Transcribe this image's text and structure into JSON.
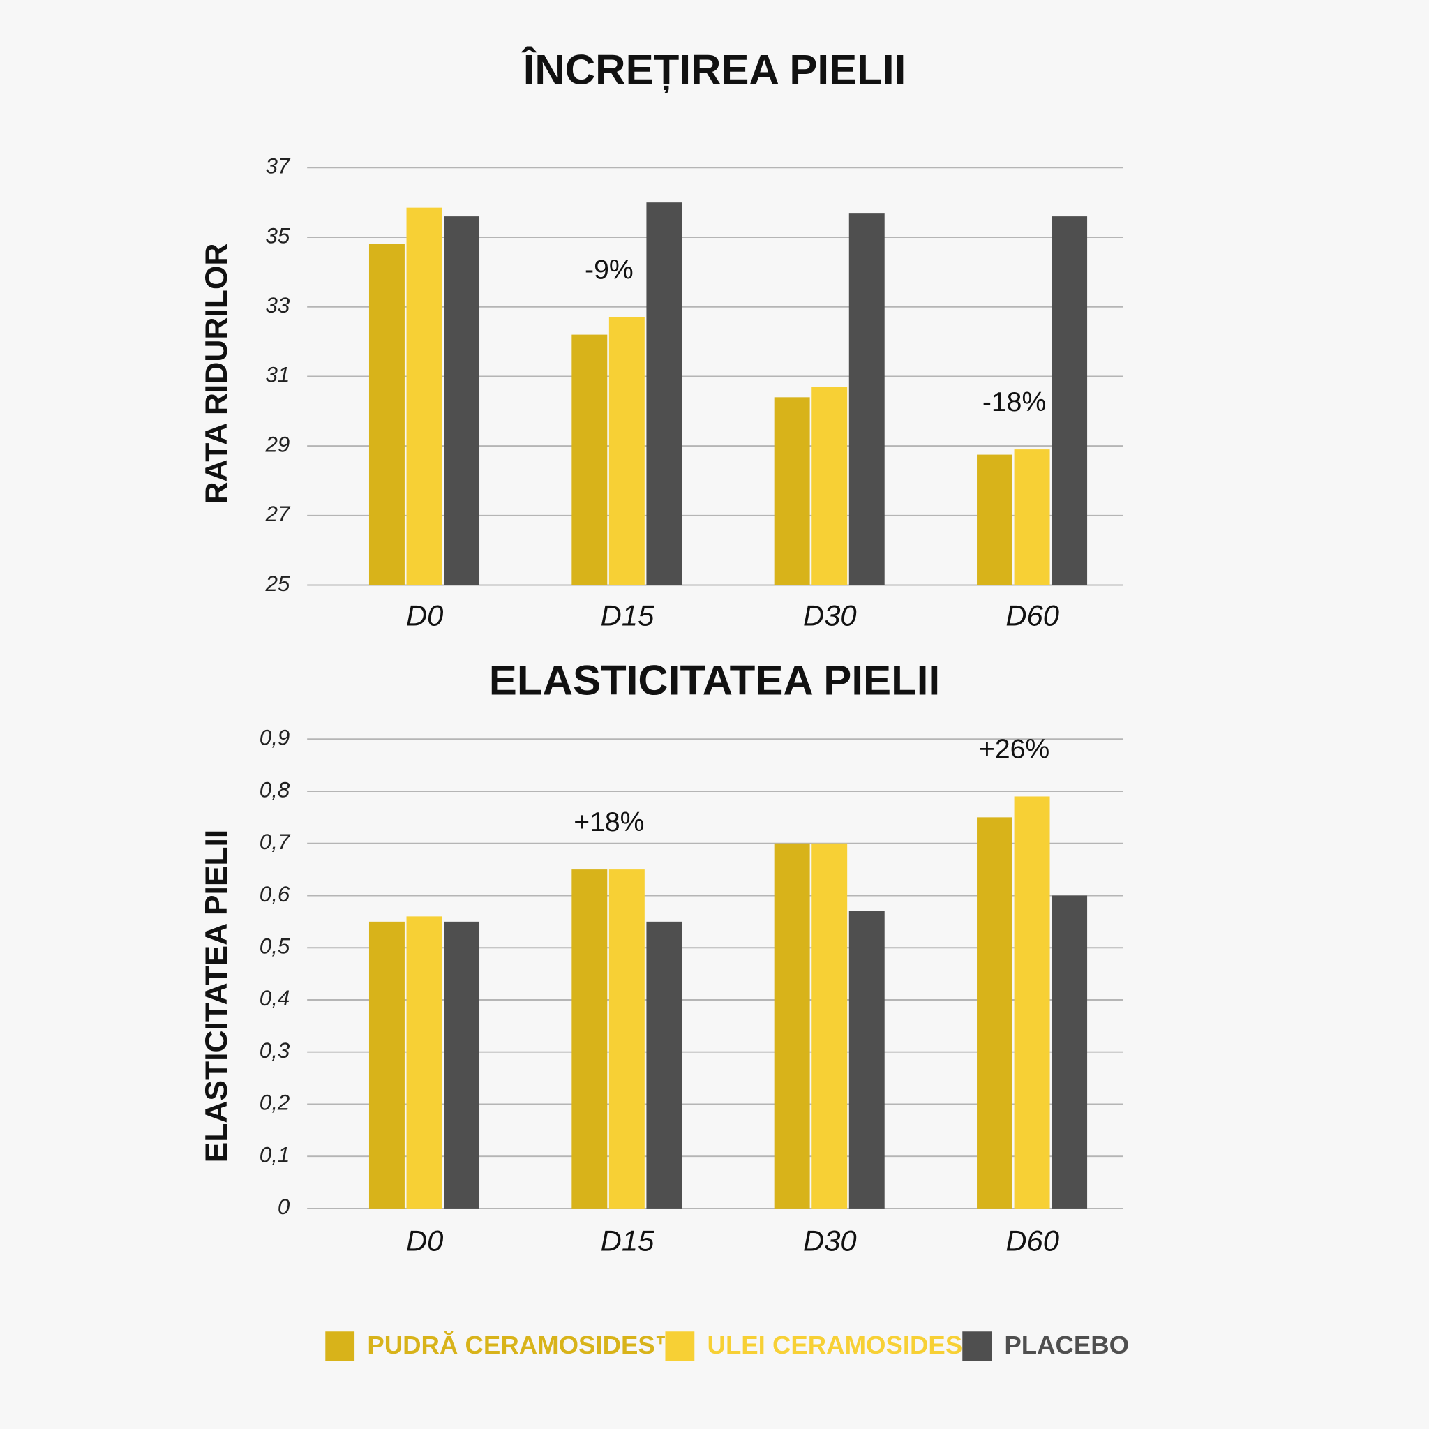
{
  "chart_data": [
    {
      "type": "bar",
      "title": "ÎNCREȚIREA PIELII",
      "y_label": "RATA RIDURILOR",
      "categories": [
        "D0",
        "D15",
        "D30",
        "D60"
      ],
      "series": [
        {
          "name": "PUDRĂ CERAMOSIDES™",
          "color": "#d8b31a",
          "values": [
            34.8,
            32.2,
            30.4,
            28.75
          ]
        },
        {
          "name": "ULEI CERAMOSIDES™",
          "color": "#f7d035",
          "values": [
            35.85,
            32.7,
            30.7,
            28.9
          ]
        },
        {
          "name": "PLACEBO",
          "color": "#4f4f4f",
          "values": [
            35.6,
            36.0,
            35.7,
            35.6
          ]
        }
      ],
      "ylim": [
        25,
        37
      ],
      "yticks": [
        25,
        27,
        29,
        31,
        33,
        35,
        37
      ],
      "grid": true,
      "annotations": [
        {
          "text": "-9%",
          "x": "D15"
        },
        {
          "text": "-18%",
          "x": "D60"
        }
      ]
    },
    {
      "type": "bar",
      "title": "ELASTICITATEA PIELII",
      "y_label": "ELASTICITATEA PIELII",
      "categories": [
        "D0",
        "D15",
        "D30",
        "D60"
      ],
      "series": [
        {
          "color": "#d8b31a",
          "values": [
            0.55,
            0.65,
            0.7,
            0.75
          ]
        },
        {
          "color": "#f7d035",
          "values": [
            0.56,
            0.65,
            0.7,
            0.79
          ]
        },
        {
          "color": "#4f4f4f",
          "values": [
            0.55,
            0.55,
            0.57,
            0.6
          ]
        }
      ],
      "ylim": [
        0,
        0.9
      ],
      "yticks": [
        0,
        {
          "value": 0.1,
          "label": "0,1"
        },
        {
          "value": 0.2,
          "label": "0,2"
        },
        {
          "value": 0.3,
          "label": "0,3"
        },
        {
          "value": 0.4,
          "label": "0,4"
        },
        {
          "value": 0.5,
          "label": "0,5"
        },
        {
          "value": 0.6,
          "label": "0,6"
        },
        {
          "value": 0.7,
          "label": "0,7"
        },
        {
          "value": 0.8,
          "label": "0,8"
        },
        {
          "value": 0.9,
          "label": "0,9"
        }
      ],
      "grid": true,
      "annotations": [
        {
          "text": "+18%",
          "x": "D15"
        },
        {
          "text": "+26%",
          "x": "D60"
        }
      ]
    }
  ]
}
